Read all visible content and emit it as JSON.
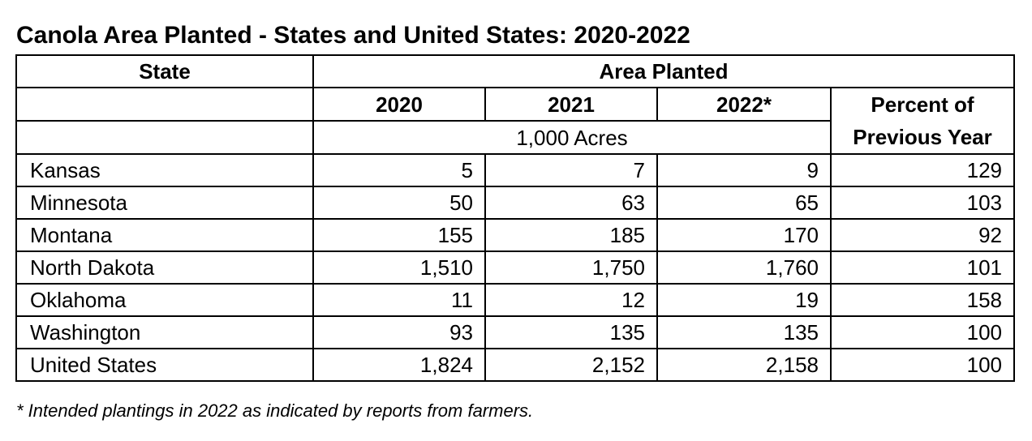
{
  "title": "Canola Area Planted - States and United States: 2020-2022",
  "header": {
    "state": "State",
    "area_planted": "Area Planted",
    "year_2020": "2020",
    "year_2021": "2021",
    "year_2022": "2022*",
    "percent_line1": "Percent of",
    "percent_line2": "Previous Year",
    "units": "1,000 Acres"
  },
  "rows": [
    {
      "state": "Kansas",
      "y2020": "5",
      "y2021": "7",
      "y2022": "9",
      "pct": "129"
    },
    {
      "state": "Minnesota",
      "y2020": "50",
      "y2021": "63",
      "y2022": "65",
      "pct": "103"
    },
    {
      "state": "Montana",
      "y2020": "155",
      "y2021": "185",
      "y2022": "170",
      "pct": "92"
    },
    {
      "state": "North Dakota",
      "y2020": "1,510",
      "y2021": "1,750",
      "y2022": "1,760",
      "pct": "101"
    },
    {
      "state": "Oklahoma",
      "y2020": "11",
      "y2021": "12",
      "y2022": "19",
      "pct": "158"
    },
    {
      "state": "Washington",
      "y2020": "93",
      "y2021": "135",
      "y2022": "135",
      "pct": "100"
    },
    {
      "state": "United States",
      "y2020": "1,824",
      "y2021": "2,152",
      "y2022": "2,158",
      "pct": "100"
    }
  ],
  "footnote": "* Intended plantings in 2022 as indicated by reports from farmers."
}
